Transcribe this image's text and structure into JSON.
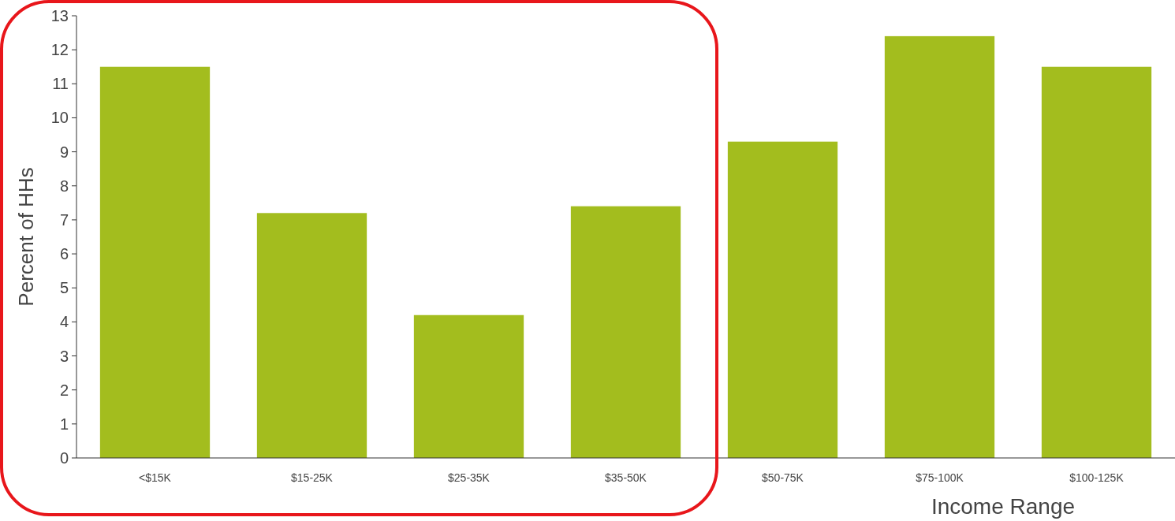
{
  "chart_data": {
    "type": "bar",
    "xlabel": "Income Range",
    "ylabel": "Percent of HHs",
    "categories": [
      "<$15K",
      "$15-25K",
      "$25-35K",
      "$35-50K",
      "$50-75K",
      "$75-100K",
      "$100-125K"
    ],
    "values": [
      11.5,
      7.2,
      4.2,
      7.4,
      9.3,
      12.4,
      11.5
    ],
    "color": "#a3bd1e",
    "ylim": [
      0,
      13
    ],
    "yticks": [
      0,
      1,
      2,
      3,
      4,
      5,
      6,
      7,
      8,
      9,
      10,
      11,
      12,
      13
    ],
    "grid": false
  }
}
